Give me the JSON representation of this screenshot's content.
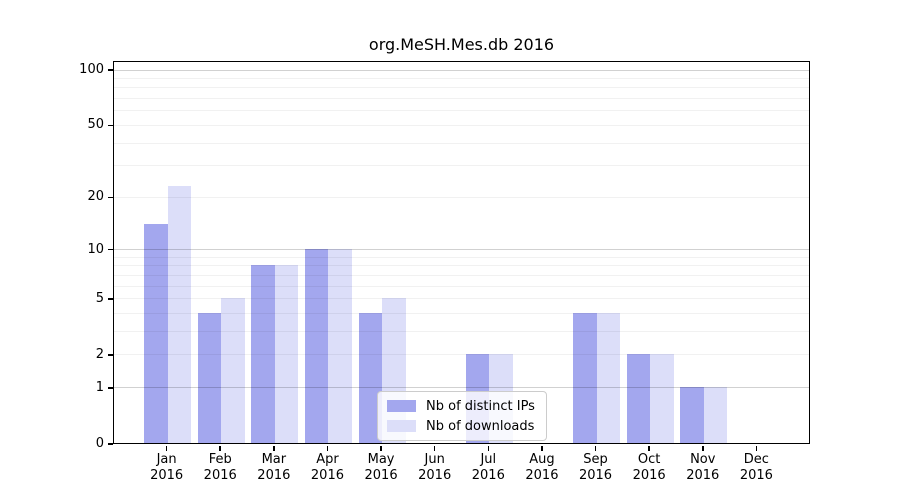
{
  "window": {
    "background": "#ffffff"
  },
  "chart_data": {
    "type": "bar",
    "title": "org.MeSH.Mes.db 2016",
    "categories": [
      "Jan",
      "Feb",
      "Mar",
      "Apr",
      "May",
      "Jun",
      "Jul",
      "Aug",
      "Sep",
      "Oct",
      "Nov",
      "Dec"
    ],
    "year_label": "2016",
    "series": [
      {
        "name": "Nb of distinct IPs",
        "color": "#a3a7ee",
        "values": [
          14,
          4,
          8,
          10,
          4,
          0,
          2,
          0,
          4,
          2,
          1,
          0
        ]
      },
      {
        "name": "Nb of downloads",
        "color": "#dcdef9",
        "values": [
          23,
          5,
          8,
          10,
          5,
          0,
          2,
          0,
          4,
          2,
          1,
          0
        ]
      }
    ],
    "x": {
      "tick_label_lines": 2
    },
    "y_axis": {
      "scale": "symlog",
      "ticks": [
        0,
        1,
        2,
        5,
        10,
        20,
        50,
        100
      ],
      "ylim": [
        0,
        112
      ],
      "gridlines_major": [
        1,
        10,
        100
      ],
      "gridlines_minor": [
        2,
        3,
        4,
        5,
        6,
        7,
        8,
        9,
        20,
        30,
        40,
        50,
        60,
        70,
        80,
        90
      ]
    },
    "legend": {
      "position": "lower center"
    },
    "grid": true
  }
}
